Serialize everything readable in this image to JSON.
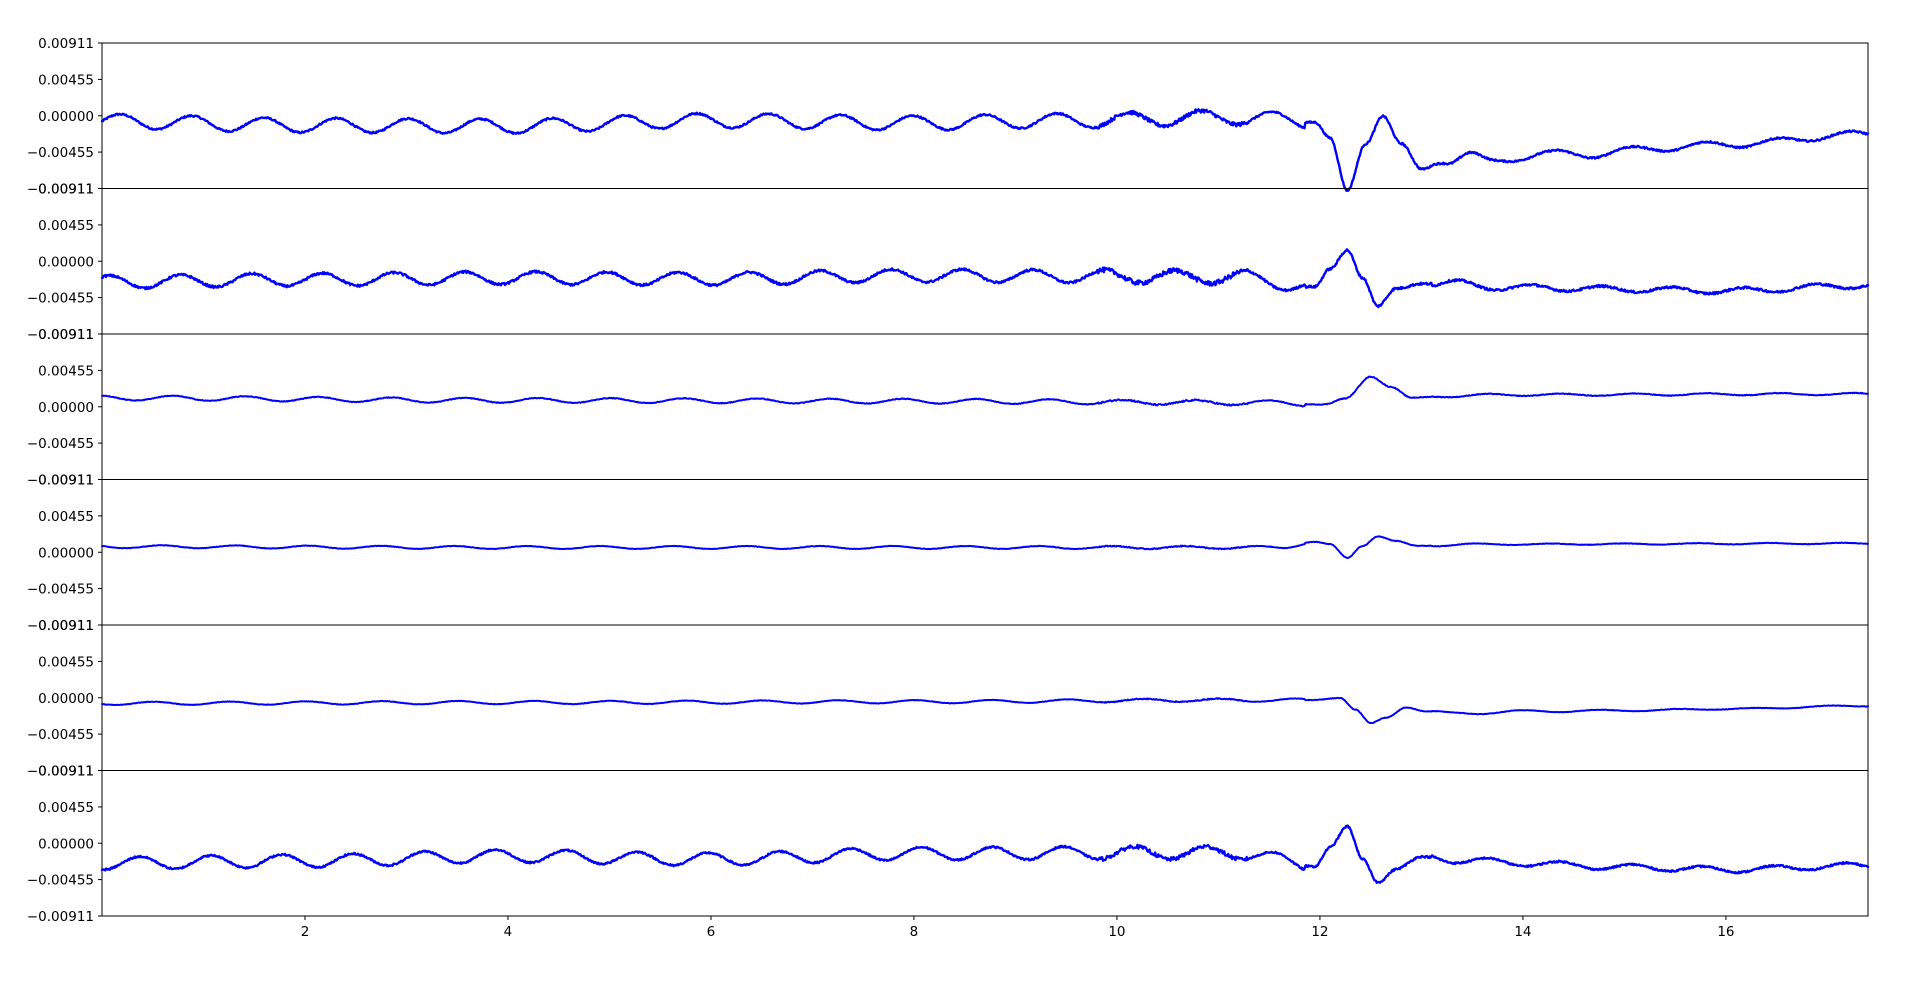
{
  "chart_data": {
    "type": "line",
    "title": "",
    "xlabel": "",
    "ylabel": "",
    "xlim": [
      0,
      17.4
    ],
    "ylim": [
      -0.00911,
      0.00911
    ],
    "x_ticks": [
      2,
      4,
      6,
      8,
      10,
      12,
      14,
      16
    ],
    "x_tick_labels": [
      "2",
      "4",
      "6",
      "8",
      "10",
      "12",
      "14",
      "16"
    ],
    "y_ticks": [
      0.00911,
      0.00455,
      0.0,
      -0.00455,
      -0.00911
    ],
    "y_tick_labels": [
      "0.00911",
      "0.00455",
      "0.00000",
      "−0.00455",
      "−0.00911"
    ],
    "line_color": "#0000ff",
    "grid": false,
    "legend": "none",
    "panels": [
      {
        "amp": 0.0009,
        "period": 0.71,
        "noise": 0.00022,
        "points": [
          [
            0,
            -0.0007
          ],
          [
            2,
            -0.0012
          ],
          [
            4,
            -0.0013
          ],
          [
            6,
            -0.0006
          ],
          [
            8,
            -0.0009
          ],
          [
            9.5,
            -0.0006
          ],
          [
            11.2,
            -0.0002
          ],
          [
            11.95,
            -0.0007
          ],
          [
            12.1,
            -0.0028
          ],
          [
            12.27,
            -0.0095
          ],
          [
            12.45,
            -0.0035
          ],
          [
            12.62,
            0.0001
          ],
          [
            12.8,
            -0.0035
          ],
          [
            13.0,
            -0.0068
          ],
          [
            13.25,
            -0.0055
          ],
          [
            13.45,
            -0.0045
          ],
          [
            13.7,
            -0.006
          ],
          [
            14.2,
            -0.0046
          ],
          [
            14.6,
            -0.005
          ],
          [
            15.0,
            -0.0043
          ],
          [
            16.0,
            -0.0036
          ],
          [
            17.4,
            -0.0023
          ]
        ],
        "osc_until": 11.9
      },
      {
        "amp": 0.0008,
        "period": 0.7,
        "noise": 0.00028,
        "points": [
          [
            0,
            -0.0026
          ],
          [
            2,
            -0.0023
          ],
          [
            4,
            -0.0021
          ],
          [
            6,
            -0.0022
          ],
          [
            8,
            -0.0018
          ],
          [
            10,
            -0.0019
          ],
          [
            11.2,
            -0.002
          ],
          [
            11.95,
            -0.0033
          ],
          [
            12.1,
            -0.001
          ],
          [
            12.27,
            0.0015
          ],
          [
            12.42,
            -0.002
          ],
          [
            12.57,
            -0.0057
          ],
          [
            12.75,
            -0.0035
          ],
          [
            13.0,
            -0.0027
          ],
          [
            14,
            -0.0033
          ],
          [
            15,
            -0.0035
          ],
          [
            16,
            -0.0037
          ],
          [
            17.4,
            -0.003
          ]
        ],
        "osc_until": 11.9
      },
      {
        "amp": 0.0003,
        "period": 0.72,
        "noise": 9e-05,
        "points": [
          [
            0,
            0.0011
          ],
          [
            4,
            0.0008
          ],
          [
            8,
            0.0007
          ],
          [
            11.5,
            0.0005
          ],
          [
            12.05,
            0.0003
          ],
          [
            12.25,
            0.001
          ],
          [
            12.5,
            0.0038
          ],
          [
            12.7,
            0.0025
          ],
          [
            12.9,
            0.0011
          ],
          [
            13.3,
            0.0014
          ],
          [
            14,
            0.0015
          ],
          [
            17.4,
            0.0016
          ]
        ],
        "osc_until": 11.9
      },
      {
        "amp": 0.00018,
        "period": 0.72,
        "noise": 6e-05,
        "points": [
          [
            0,
            0.0007
          ],
          [
            4,
            0.0006
          ],
          [
            8,
            0.0006
          ],
          [
            11.6,
            0.0006
          ],
          [
            11.95,
            0.0013
          ],
          [
            12.1,
            0.001
          ],
          [
            12.27,
            -0.0007
          ],
          [
            12.42,
            0.0008
          ],
          [
            12.57,
            0.002
          ],
          [
            12.75,
            0.0014
          ],
          [
            12.95,
            0.0008
          ],
          [
            13.5,
            0.001
          ],
          [
            17.4,
            0.0011
          ]
        ],
        "osc_until": 11.9
      },
      {
        "amp": 0.0002,
        "period": 0.75,
        "noise": 6e-05,
        "points": [
          [
            0,
            -0.0007
          ],
          [
            4,
            -0.0006
          ],
          [
            8,
            -0.0005
          ],
          [
            11.0,
            -0.0003
          ],
          [
            11.9,
            -0.0003
          ],
          [
            12.2,
            0.0
          ],
          [
            12.35,
            -0.0015
          ],
          [
            12.5,
            -0.0032
          ],
          [
            12.65,
            -0.0025
          ],
          [
            12.85,
            -0.0012
          ],
          [
            13.05,
            -0.0017
          ],
          [
            13.3,
            -0.002
          ],
          [
            14,
            -0.0017
          ],
          [
            15,
            -0.0016
          ],
          [
            16,
            -0.0014
          ],
          [
            17.4,
            -0.001
          ]
        ],
        "osc_until": 13.0
      },
      {
        "amp": 0.0008,
        "period": 0.7,
        "noise": 0.00022,
        "points": [
          [
            0,
            -0.0025
          ],
          [
            2,
            -0.0022
          ],
          [
            4,
            -0.0016
          ],
          [
            6,
            -0.002
          ],
          [
            8,
            -0.0013
          ],
          [
            10,
            -0.0012
          ],
          [
            11.2,
            -0.0012
          ],
          [
            11.95,
            -0.0028
          ],
          [
            12.1,
            -0.0005
          ],
          [
            12.27,
            0.002
          ],
          [
            12.42,
            -0.002
          ],
          [
            12.57,
            -0.0048
          ],
          [
            12.75,
            -0.0032
          ],
          [
            13.0,
            -0.0018
          ],
          [
            14,
            -0.0025
          ],
          [
            15,
            -0.003
          ],
          [
            16,
            -0.0033
          ],
          [
            17.4,
            -0.0028
          ]
        ],
        "osc_until": 11.9
      }
    ]
  }
}
